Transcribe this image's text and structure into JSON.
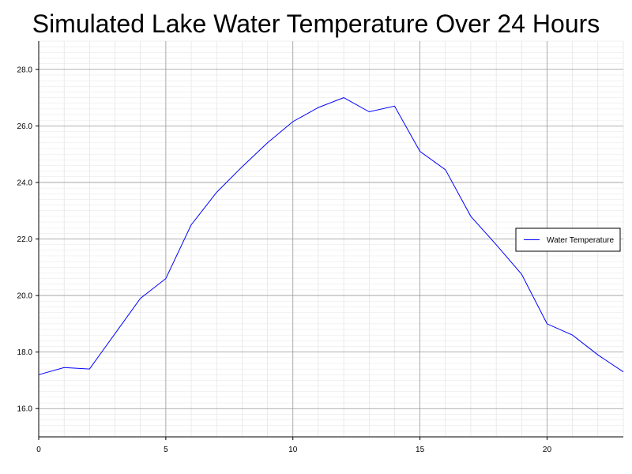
{
  "chart_data": {
    "type": "line",
    "title": "Simulated Lake Water Temperature Over 24 Hours",
    "xlabel": "",
    "ylabel": "",
    "xlim": [
      0,
      23
    ],
    "ylim": [
      15,
      29
    ],
    "x_ticks": [
      0,
      5,
      10,
      15,
      20
    ],
    "y_ticks": [
      16,
      18,
      20,
      22,
      24,
      26,
      28
    ],
    "y_tick_labels": [
      "16.0",
      "18.0",
      "20.0",
      "22.0",
      "24.0",
      "26.0",
      "28.0"
    ],
    "x_minor_step": 1,
    "y_minor_step": 0.2,
    "grid": true,
    "legend_position": "right",
    "series": [
      {
        "name": "Water Temperature",
        "color": "#0000ff",
        "x": [
          0,
          1,
          2,
          3,
          4,
          5,
          6,
          7,
          8,
          9,
          10,
          11,
          12,
          13,
          14,
          15,
          16,
          17,
          18,
          19,
          20,
          21,
          22,
          23
        ],
        "values": [
          17.2,
          17.45,
          17.4,
          18.65,
          19.9,
          20.6,
          22.5,
          23.65,
          24.55,
          25.4,
          26.15,
          26.65,
          27.0,
          26.5,
          26.7,
          25.1,
          24.45,
          22.8,
          21.8,
          20.75,
          19.0,
          18.6,
          17.9,
          17.3
        ]
      }
    ]
  }
}
